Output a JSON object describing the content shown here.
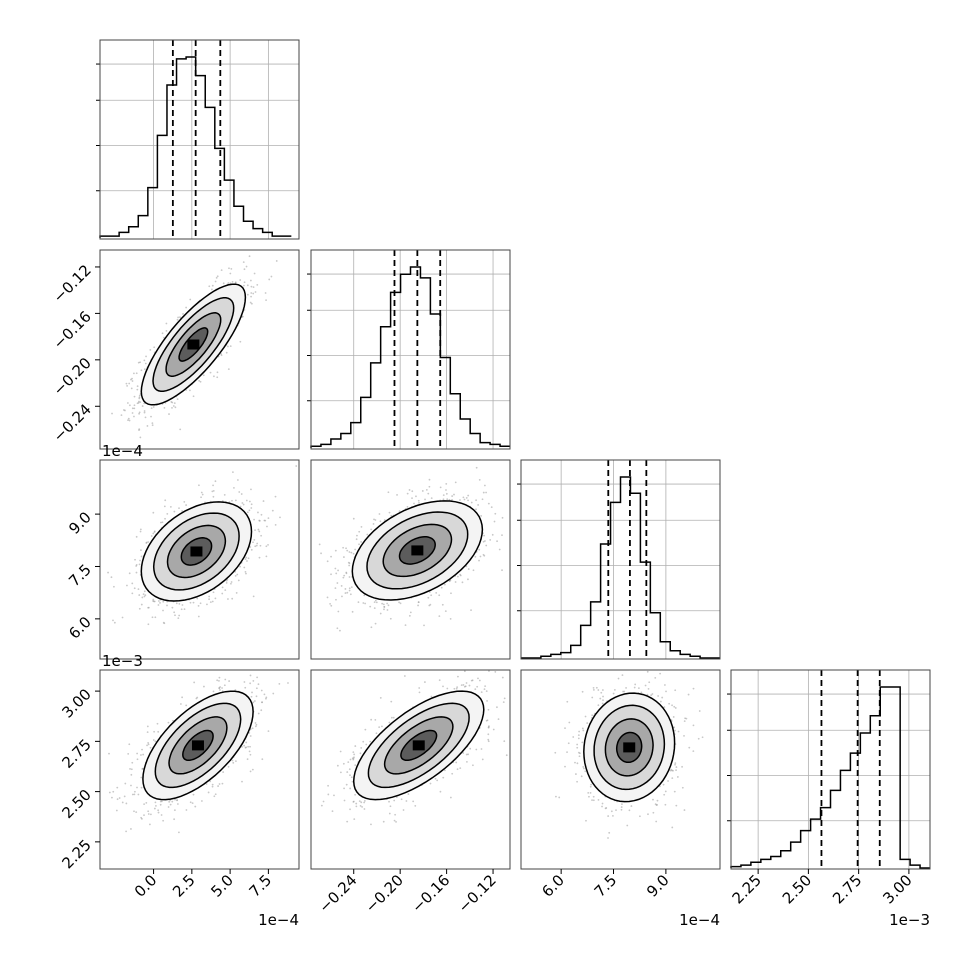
{
  "chart_data": {
    "type": "corner",
    "n_params": 4,
    "params": [
      {
        "range": [
          -0.00035,
          0.00095
        ],
        "ticks": [
          0.0,
          2.5,
          5.0,
          7.5
        ],
        "tick_labels": [
          "0.0",
          "2.5",
          "5.0",
          "7.5"
        ],
        "scale": 0.0001,
        "offset_label": "1e−4"
      },
      {
        "range": [
          -0.2768,
          -0.1054
        ],
        "ticks": [
          -0.24,
          -0.2,
          -0.16,
          -0.12
        ],
        "tick_labels": [
          "−0.24",
          "−0.20",
          "−0.16",
          "−0.12"
        ],
        "scale": 1,
        "offset_label": ""
      },
      {
        "range": [
          0.000485,
          0.001055
        ],
        "ticks": [
          6.0,
          7.5,
          9.0
        ],
        "tick_labels": [
          "6.0",
          "7.5",
          "9.0"
        ],
        "scale": 0.0001,
        "offset_label": "1e−4"
      },
      {
        "range": [
          0.002115,
          0.003105
        ],
        "ticks": [
          2.25,
          2.5,
          2.75,
          3.0
        ],
        "tick_labels": [
          "2.25",
          "2.50",
          "2.75",
          "3.00"
        ],
        "scale": 0.001,
        "offset_label": "1e−3"
      }
    ],
    "diagonal": [
      {
        "quantiles": [
          0.000126,
          0.000275,
          0.000436
        ],
        "hist_edges_start": -0.00035,
        "hist_bin_width": 6.25e-05,
        "hist_counts": [
          1,
          1,
          3,
          6,
          12,
          27,
          55,
          82,
          96,
          97,
          87,
          70,
          48,
          31,
          17,
          9,
          5,
          3,
          1,
          1
        ]
      },
      {
        "quantiles": [
          -0.2049,
          -0.1852,
          -0.1655
        ],
        "hist_edges_start": -0.2768,
        "hist_bin_width": 0.00857,
        "hist_counts": [
          1,
          2,
          5,
          8,
          14,
          28,
          47,
          67,
          86,
          96,
          100,
          94,
          74,
          50,
          30,
          16,
          8,
          3,
          2,
          1
        ]
      },
      {
        "quantiles": [
          0.000735,
          0.000797,
          0.000844
        ],
        "hist_edges_start": 0.000485,
        "hist_bin_width": 2.85e-05,
        "hist_counts": [
          0,
          0,
          1,
          2,
          3,
          7,
          18,
          31,
          63,
          86,
          100,
          91,
          53,
          25,
          9,
          4,
          2,
          1,
          0,
          0
        ]
      },
      {
        "quantiles": [
          0.002565,
          0.002745,
          0.002855
        ],
        "hist_edges_start": 0.002115,
        "hist_bin_width": 4.95e-05,
        "hist_counts": [
          0.5,
          1,
          2,
          3,
          4,
          6,
          9,
          13,
          17,
          21,
          27,
          34,
          40,
          47,
          53,
          63,
          63,
          3,
          1,
          0
        ]
      }
    ],
    "panels": [
      {
        "row": 1,
        "col": 0,
        "center": [
          0.00026,
          -0.1868
        ],
        "sigma": [
          0.00017,
          0.026
        ],
        "corr": 0.78
      },
      {
        "row": 2,
        "col": 0,
        "center": [
          0.00028,
          0.000793
        ],
        "sigma": [
          0.00018,
          7.1e-05
        ],
        "corr": 0.4
      },
      {
        "row": 2,
        "col": 1,
        "center": [
          -0.1852,
          0.000796
        ],
        "sigma": [
          0.028,
          7.1e-05
        ],
        "corr": 0.42
      },
      {
        "row": 3,
        "col": 0,
        "center": [
          0.00029,
          0.00273
        ],
        "sigma": [
          0.00018,
          0.000135
        ],
        "corr": 0.62
      },
      {
        "row": 3,
        "col": 1,
        "center": [
          -0.184,
          0.00273
        ],
        "sigma": [
          0.028,
          0.000135
        ],
        "corr": 0.66
      },
      {
        "row": 3,
        "col": 2,
        "center": [
          0.000795,
          0.00272
        ],
        "sigma": [
          6.5e-05,
          0.000135
        ],
        "corr": 0.08
      }
    ],
    "grid": true,
    "colors": {
      "hist": "#000000",
      "contour": "#000000",
      "scatter": "#9a9a9a",
      "grid": "#b0b0b0"
    }
  }
}
